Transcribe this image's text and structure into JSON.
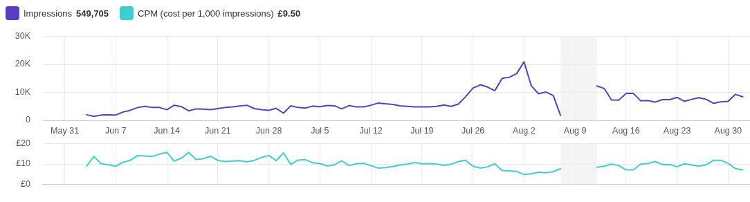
{
  "chart_data": [
    {
      "type": "line",
      "x": [
        "--06-03",
        "--06-04",
        "--06-05",
        "--06-06",
        "--06-07",
        "--06-08",
        "--06-09",
        "--06-10",
        "--06-11",
        "--06-12",
        "--06-13",
        "--06-14",
        "--06-15",
        "--06-16",
        "--06-17",
        "--06-18",
        "--06-19",
        "--06-20",
        "--06-21",
        "--06-22",
        "--06-23",
        "--06-24",
        "--06-25",
        "--06-26",
        "--06-27",
        "--06-28",
        "--06-29",
        "--06-30",
        "--07-01",
        "--07-02",
        "--07-03",
        "--07-04",
        "--07-05",
        "--07-06",
        "--07-07",
        "--07-08",
        "--07-09",
        "--07-10",
        "--07-11",
        "--07-12",
        "--07-13",
        "--07-14",
        "--07-15",
        "--07-16",
        "--07-17",
        "--07-18",
        "--07-19",
        "--07-20",
        "--07-21",
        "--07-22",
        "--07-23",
        "--07-24",
        "--07-25",
        "--07-26",
        "--07-27",
        "--07-28",
        "--07-29",
        "--07-30",
        "--07-31",
        "--08-01",
        "--08-02",
        "--08-03",
        "--08-04",
        "--08-05",
        "--08-06",
        "--08-07",
        "--08-08",
        "--08-09",
        "--08-10",
        "--08-11",
        "--08-12",
        "--08-13",
        "--08-14",
        "--08-15",
        "--08-16",
        "--08-17",
        "--08-18",
        "--08-19",
        "--08-20",
        "--08-21",
        "--08-22",
        "--08-23",
        "--08-24",
        "--08-25",
        "--08-26",
        "--08-27",
        "--08-28",
        "--08-29",
        "--08-30",
        "--08-31",
        "--09-01"
      ],
      "series": [
        {
          "name": "Impressions",
          "color": "#5b3cc4",
          "values": [
            2000,
            1400,
            1900,
            2000,
            1900,
            3000,
            3600,
            4600,
            5000,
            4600,
            4600,
            3800,
            5400,
            4900,
            3400,
            4100,
            4000,
            3800,
            4200,
            4600,
            4800,
            5100,
            5400,
            4200,
            3800,
            3600,
            4300,
            2600,
            5200,
            4600,
            4400,
            5100,
            4900,
            5300,
            5200,
            4100,
            5300,
            4800,
            4800,
            5400,
            6200,
            5900,
            5700,
            5200,
            5000,
            4800,
            4800,
            4800,
            5000,
            5500,
            5000,
            5800,
            8500,
            11500,
            12700,
            11900,
            10600,
            15000,
            15400,
            16700,
            20900,
            12300,
            9500,
            10100,
            8900,
            1800,
            null,
            null,
            null,
            null,
            12300,
            11400,
            7300,
            7200,
            9600,
            9600,
            7000,
            7100,
            6500,
            7400,
            7400,
            8200,
            6800,
            7500,
            8100,
            7500,
            6100,
            6600,
            6800,
            9300,
            8400
          ]
        }
      ],
      "annotations": [
        "549,705"
      ],
      "xlim": [
        "--05-28",
        "--09-02"
      ],
      "xticks": [
        {
          "value": "--05-31",
          "label": "May 31"
        },
        {
          "value": "--06-07",
          "label": "Jun 7"
        },
        {
          "value": "--06-14",
          "label": "Jun 14"
        },
        {
          "value": "--06-21",
          "label": "Jun 21"
        },
        {
          "value": "--06-28",
          "label": "Jun 28"
        },
        {
          "value": "--07-05",
          "label": "Jul 5"
        },
        {
          "value": "--07-12",
          "label": "Jul 12"
        },
        {
          "value": "--07-19",
          "label": "Jul 19"
        },
        {
          "value": "--07-26",
          "label": "Jul 26"
        },
        {
          "value": "--08-02",
          "label": "Aug 2"
        },
        {
          "value": "--08-09",
          "label": "Aug 9"
        },
        {
          "value": "--08-16",
          "label": "Aug 16"
        },
        {
          "value": "--08-23",
          "label": "Aug 23"
        },
        {
          "value": "--08-30",
          "label": "Aug 30"
        }
      ],
      "ylim": [
        0,
        30000
      ],
      "yticks": [
        0,
        {
          "value": 10000,
          "label": "10K"
        },
        {
          "value": 20000,
          "label": "20K"
        },
        {
          "value": 30000,
          "label": "30K"
        }
      ],
      "bands": [
        {
          "axis": "x",
          "from": "--08-07",
          "to": "--08-12",
          "color": "#f0f0f0"
        }
      ],
      "grid": true,
      "legend": "top left",
      "marker": "none",
      "line_style": "solid"
    },
    {
      "type": "line",
      "x": [
        "--06-03",
        "--06-04",
        "--06-05",
        "--06-06",
        "--06-07",
        "--06-08",
        "--06-09",
        "--06-10",
        "--06-11",
        "--06-12",
        "--06-13",
        "--06-14",
        "--06-15",
        "--06-16",
        "--06-17",
        "--06-18",
        "--06-19",
        "--06-20",
        "--06-21",
        "--06-22",
        "--06-23",
        "--06-24",
        "--06-25",
        "--06-26",
        "--06-27",
        "--06-28",
        "--06-29",
        "--06-30",
        "--07-01",
        "--07-02",
        "--07-03",
        "--07-04",
        "--07-05",
        "--07-06",
        "--07-07",
        "--07-08",
        "--07-09",
        "--07-10",
        "--07-11",
        "--07-12",
        "--07-13",
        "--07-14",
        "--07-15",
        "--07-16",
        "--07-17",
        "--07-18",
        "--07-19",
        "--07-20",
        "--07-21",
        "--07-22",
        "--07-23",
        "--07-24",
        "--07-25",
        "--07-26",
        "--07-27",
        "--07-28",
        "--07-29",
        "--07-30",
        "--07-31",
        "--08-01",
        "--08-02",
        "--08-03",
        "--08-04",
        "--08-05",
        "--08-06",
        "--08-07",
        "--08-08",
        "--08-09",
        "--08-10",
        "--08-11",
        "--08-12",
        "--08-13",
        "--08-14",
        "--08-15",
        "--08-16",
        "--08-17",
        "--08-18",
        "--08-19",
        "--08-20",
        "--08-21",
        "--08-22",
        "--08-23",
        "--08-24",
        "--08-25",
        "--08-26",
        "--08-27",
        "--08-28",
        "--08-29",
        "--08-30",
        "--08-31",
        "--09-01"
      ],
      "series": [
        {
          "name": "CPM (cost per 1,000 impressions)",
          "color": "#3ccfcf",
          "values": [
            8.9,
            13.7,
            10.1,
            9.6,
            8.9,
            10.8,
            11.8,
            14.1,
            13.9,
            13.7,
            14.8,
            15.7,
            11.4,
            12.8,
            15.7,
            12.2,
            12.5,
            13.8,
            11.7,
            11.2,
            11.4,
            11.6,
            11.0,
            11.8,
            13.2,
            14.2,
            11.6,
            15.4,
            9.8,
            11.9,
            12.1,
            10.6,
            10.2,
            9.0,
            9.6,
            11.6,
            9.2,
            10.1,
            10.3,
            9.2,
            8.0,
            8.2,
            8.7,
            9.5,
            9.9,
            10.7,
            10.1,
            10.2,
            9.9,
            9.3,
            9.8,
            11.2,
            11.8,
            8.9,
            8.0,
            8.6,
            10.1,
            6.8,
            6.6,
            6.3,
            4.8,
            5.2,
            5.9,
            5.7,
            6.2,
            7.7,
            null,
            null,
            null,
            null,
            8.4,
            8.9,
            9.9,
            9.2,
            7.1,
            7.1,
            9.9,
            10.2,
            11.2,
            9.7,
            9.7,
            8.6,
            10.1,
            9.5,
            8.9,
            9.6,
            11.8,
            11.8,
            10.3,
            7.7,
            7.1
          ]
        }
      ],
      "annotations": [
        "£9.50"
      ],
      "xlim": [
        "--05-28",
        "--09-02"
      ],
      "xticks": [
        {
          "value": "--05-31",
          "label": null
        },
        {
          "value": "--06-07",
          "label": null
        },
        {
          "value": "--06-14",
          "label": null
        },
        {
          "value": "--06-21",
          "label": null
        },
        {
          "value": "--06-28",
          "label": null
        },
        {
          "value": "--07-05",
          "label": null
        },
        {
          "value": "--07-12",
          "label": null
        },
        {
          "value": "--07-19",
          "label": null
        },
        {
          "value": "--07-26",
          "label": null
        },
        {
          "value": "--08-02",
          "label": null
        },
        {
          "value": "--08-09",
          "label": null
        },
        {
          "value": "--08-16",
          "label": null
        },
        {
          "value": "--08-23",
          "label": null
        },
        {
          "value": "--08-30",
          "label": null
        }
      ],
      "ylim": [
        0,
        20
      ],
      "yticks": [
        {
          "value": 0,
          "label": "£0"
        },
        {
          "value": 10,
          "label": "£10"
        },
        {
          "value": 20,
          "label": "£20"
        }
      ],
      "bands": [
        {
          "axis": "x",
          "from": "--08-07",
          "to": "--08-12",
          "color": "#f0f0f0"
        }
      ],
      "grid": true,
      "legend": "top left",
      "marker": "none",
      "line_style": "solid",
      "tick_labels": "y"
    }
  ]
}
